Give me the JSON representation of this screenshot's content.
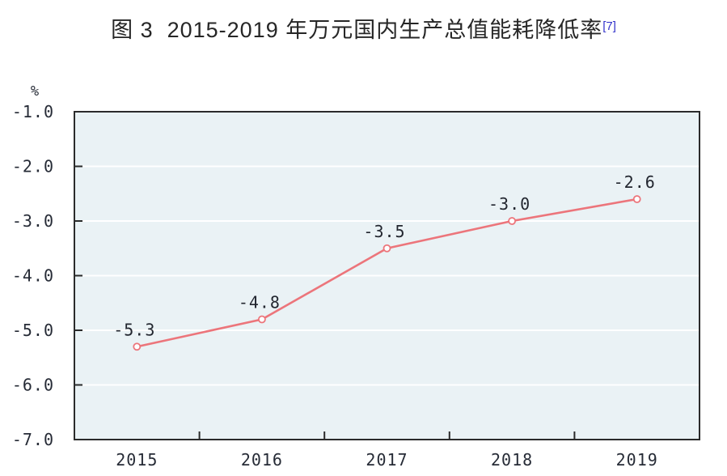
{
  "title": {
    "text": "图 3  2015-2019 年万元国内生产总值能耗降低率",
    "superscript": "[7]"
  },
  "chart_data": {
    "type": "line",
    "title": "图 3 2015-2019 年万元国内生产总值能耗降低率[7]",
    "unit_label": "%",
    "categories": [
      "2015",
      "2016",
      "2017",
      "2018",
      "2019"
    ],
    "values": [
      -5.3,
      -4.8,
      -3.5,
      -3.0,
      -2.6
    ],
    "value_labels": [
      "-5.3",
      "-4.8",
      "-3.5",
      "-3.0",
      "-2.6"
    ],
    "y_ticks": [
      -1.0,
      -2.0,
      -3.0,
      -4.0,
      -5.0,
      -6.0,
      -7.0
    ],
    "y_tick_labels": [
      "-1.0",
      "-2.0",
      "-3.0",
      "-4.0",
      "-5.0",
      "-6.0",
      "-7.0"
    ],
    "ylim": [
      -7.0,
      -1.0
    ],
    "xlabel": "",
    "ylabel": "%",
    "grid": true,
    "legend": false,
    "colors": {
      "line": "#ec757b",
      "marker_fill": "#ffffff",
      "plot_bg": "#eaf2f5",
      "gridline": "#ffffff",
      "axis": "#2b2b2b",
      "label": "#262b36",
      "title": "#262626",
      "superscript": "#3434cb"
    }
  }
}
